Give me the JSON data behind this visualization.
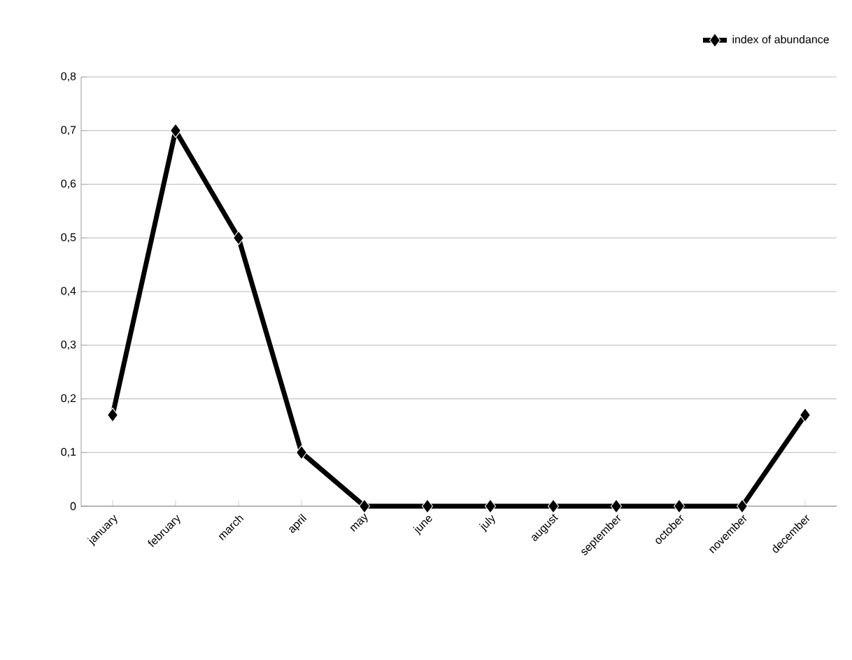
{
  "chart_data": {
    "type": "line",
    "categories": [
      "january",
      "february",
      "march",
      "april",
      "may",
      "june",
      "july",
      "august",
      "september",
      "october",
      "november",
      "december"
    ],
    "series": [
      {
        "name": "index of abundance",
        "color": "#000000",
        "values": [
          0.17,
          0.7,
          0.5,
          0.1,
          0,
          0,
          0,
          0,
          0,
          0,
          0,
          0.17
        ]
      }
    ],
    "ylim": [
      0,
      0.8
    ],
    "yticks": [
      0,
      {
        "value": 0.1,
        "label": "0,1"
      },
      {
        "value": 0.2,
        "label": "0,2"
      },
      {
        "value": 0.3,
        "label": "0,3"
      },
      {
        "value": 0.4,
        "label": "0,4"
      },
      {
        "value": 0.5,
        "label": "0,5"
      },
      {
        "value": 0.6,
        "label": "0,6"
      },
      {
        "value": 0.7,
        "label": "0,7"
      },
      {
        "value": 0.8,
        "label": "0,8"
      }
    ],
    "grid": "y",
    "legend": "top right",
    "marker": "diamond",
    "line_style": "solid"
  }
}
